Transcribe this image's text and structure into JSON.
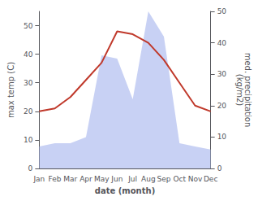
{
  "chart_data": {
    "type": "line",
    "categories": [
      "Jan",
      "Feb",
      "Mar",
      "Apr",
      "May",
      "Jun",
      "Jul",
      "Aug",
      "Sep",
      "Oct",
      "Nov",
      "Dec"
    ],
    "series": [
      {
        "type": "area",
        "color": "#b0bef0",
        "axis": "y2",
        "values": [
          7,
          8,
          8,
          10,
          36,
          35,
          22,
          50,
          42,
          8,
          7,
          6
        ]
      },
      {
        "type": "line",
        "color": "#c0392b",
        "values": [
          20,
          21,
          25,
          31,
          37,
          48,
          47,
          44,
          38,
          30,
          22,
          20
        ]
      }
    ],
    "xlabel": "date (month)",
    "ylabel": "max temp (C)",
    "y2label": "med. precipitation\n(kg/m2)",
    "ylim": [
      0,
      55
    ],
    "yticks": [
      0,
      10,
      20,
      30,
      40,
      50
    ],
    "y2lim": [
      0,
      50
    ],
    "y2ticks": [
      0,
      10,
      20,
      30,
      40,
      50
    ],
    "grid": false
  }
}
